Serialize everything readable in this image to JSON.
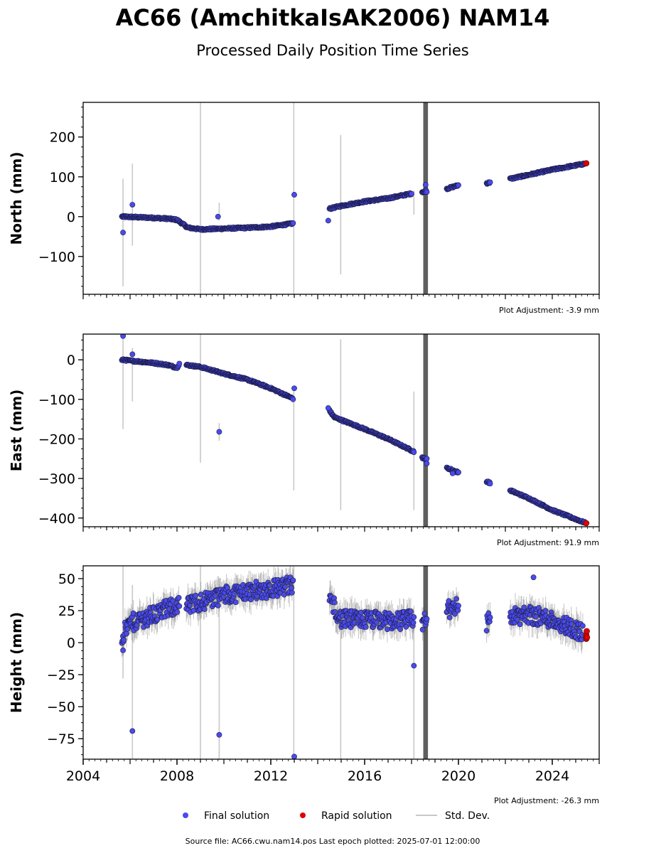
{
  "figure": {
    "title": "AC66 (AmchitkaIsAK2006) NAM14",
    "subtitle": "Processed Daily Position Time Series",
    "footer": "Source file: AC66.cwu.nam14.pos  Last epoch plotted: 2025-07-01 12:00:00"
  },
  "legend": {
    "placement": "bottom-center",
    "items": [
      {
        "label": "Final solution",
        "color": "#4a4af0",
        "kind": "dot"
      },
      {
        "label": "Rapid solution",
        "color": "#e00000",
        "kind": "dot"
      },
      {
        "label": "Std. Dev.",
        "color": "#c8c8c8",
        "kind": "line"
      }
    ]
  },
  "chart_data": [
    {
      "type": "scatter",
      "ylabel": "North (mm)",
      "xlabel": "",
      "xlim": [
        2004,
        2026
      ],
      "ylim": [
        -195,
        287
      ],
      "yticks": [
        -100,
        0,
        100,
        200
      ],
      "ytick_labels": [
        "−100",
        "0",
        "100",
        "200"
      ],
      "adjustment": "Plot Adjustment: -3.9 mm",
      "trend_segments": [
        {
          "x": [
            2005.65,
            2007.0,
            2007.6,
            2008.0,
            2008.4
          ],
          "y": [
            0,
            -3,
            -5,
            -8,
            -25
          ]
        },
        {
          "x": [
            2008.4,
            2009.0,
            2010.0,
            2011.0,
            2012.0,
            2012.95
          ],
          "y": [
            -27,
            -32,
            -30,
            -28,
            -25,
            -17
          ]
        },
        {
          "x": [
            2014.5,
            2015.0,
            2016.0,
            2017.0,
            2018.0
          ],
          "y": [
            20,
            27,
            38,
            46,
            58
          ]
        },
        {
          "x": [
            2018.45,
            2018.65
          ],
          "y": [
            62,
            64
          ]
        },
        {
          "x": [
            2019.5,
            2020.0
          ],
          "y": [
            70,
            79
          ]
        },
        {
          "x": [
            2021.2,
            2021.35
          ],
          "y": [
            84,
            86
          ]
        },
        {
          "x": [
            2022.2,
            2023.0,
            2024.0,
            2025.4
          ],
          "y": [
            95,
            105,
            118,
            133
          ]
        }
      ],
      "outliers": [
        {
          "x": 2005.7,
          "y": -40
        },
        {
          "x": 2006.1,
          "y": 30
        },
        {
          "x": 2009.75,
          "y": 0
        },
        {
          "x": 2013.0,
          "y": 55
        },
        {
          "x": 2014.45,
          "y": -10
        },
        {
          "x": 2018.6,
          "y": 80
        }
      ],
      "rapid": [
        {
          "x": 2025.45,
          "y": 134
        }
      ],
      "std_bars": [
        {
          "x": 2005.7,
          "lo": -175,
          "hi": 95
        },
        {
          "x": 2006.1,
          "lo": -73,
          "hi": 133
        },
        {
          "x": 2009.0,
          "lo": -195,
          "hi": 287
        },
        {
          "x": 2009.8,
          "lo": -10,
          "hi": 35
        },
        {
          "x": 2012.98,
          "lo": -195,
          "hi": 287
        },
        {
          "x": 2014.98,
          "lo": -145,
          "hi": 205
        },
        {
          "x": 2018.1,
          "lo": 5,
          "hi": 65
        }
      ],
      "dark_band": {
        "x": [
          2018.5,
          2018.7
        ],
        "lo": -195,
        "hi": 287
      }
    },
    {
      "type": "scatter",
      "ylabel": "East (mm)",
      "xlabel": "",
      "xlim": [
        2004,
        2026
      ],
      "ylim": [
        -422,
        65
      ],
      "yticks": [
        -400,
        -300,
        -200,
        -100,
        0
      ],
      "ytick_labels": [
        "−400",
        "−300",
        "−200",
        "−100",
        "0"
      ],
      "adjustment": "Plot Adjustment: 91.9 mm",
      "trend_segments": [
        {
          "x": [
            2005.65,
            2007.0,
            2007.6,
            2008.0,
            2008.1
          ],
          "y": [
            0,
            -8,
            -13,
            -20,
            -10
          ]
        },
        {
          "x": [
            2008.4,
            2009.0,
            2010.0,
            2011.0,
            2012.0,
            2012.95
          ],
          "y": [
            -13,
            -18,
            -35,
            -50,
            -72,
            -98
          ]
        },
        {
          "x": [
            2014.5,
            2014.7,
            2015.0,
            2016.0,
            2017.0,
            2018.1
          ],
          "y": [
            -128,
            -145,
            -152,
            -175,
            -200,
            -232
          ]
        },
        {
          "x": [
            2018.45,
            2018.65
          ],
          "y": [
            -247,
            -252
          ]
        },
        {
          "x": [
            2019.5,
            2020.0
          ],
          "y": [
            -273,
            -285
          ]
        },
        {
          "x": [
            2021.2,
            2021.35
          ],
          "y": [
            -307,
            -312
          ]
        },
        {
          "x": [
            2022.2,
            2023.0,
            2024.0,
            2025.4
          ],
          "y": [
            -330,
            -350,
            -380,
            -412
          ]
        }
      ],
      "outliers": [
        {
          "x": 2005.7,
          "y": 60
        },
        {
          "x": 2006.1,
          "y": 14
        },
        {
          "x": 2009.8,
          "y": -182
        },
        {
          "x": 2013.0,
          "y": -72
        },
        {
          "x": 2014.45,
          "y": -122
        },
        {
          "x": 2018.65,
          "y": -262
        },
        {
          "x": 2019.75,
          "y": -287
        }
      ],
      "rapid": [
        {
          "x": 2025.45,
          "y": -413
        }
      ],
      "std_bars": [
        {
          "x": 2005.7,
          "lo": -175,
          "hi": 55
        },
        {
          "x": 2006.1,
          "lo": -105,
          "hi": 30
        },
        {
          "x": 2009.0,
          "lo": -260,
          "hi": 65
        },
        {
          "x": 2009.8,
          "lo": -205,
          "hi": -160
        },
        {
          "x": 2012.98,
          "lo": -330,
          "hi": -70
        },
        {
          "x": 2014.98,
          "lo": -380,
          "hi": 52
        },
        {
          "x": 2018.1,
          "lo": -380,
          "hi": -80
        }
      ],
      "dark_band": {
        "x": [
          2018.5,
          2018.7
        ],
        "lo": -422,
        "hi": 65
      }
    },
    {
      "type": "scatter",
      "ylabel": "Height (mm)",
      "xlabel": "",
      "xlim": [
        2004,
        2026
      ],
      "ylim": [
        -91,
        60
      ],
      "yticks": [
        -75,
        -50,
        -25,
        0,
        25,
        50
      ],
      "ytick_labels": [
        "−75",
        "−50",
        "−25",
        "0",
        "25",
        "50"
      ],
      "xticks": [
        2004,
        2008,
        2012,
        2016,
        2020,
        2024
      ],
      "xtick_labels": [
        "2004",
        "2008",
        "2012",
        "2016",
        "2020",
        "2024"
      ],
      "adjustment": "Plot Adjustment: -26.3 mm",
      "trend_segments": [
        {
          "x": [
            2005.65,
            2006.0,
            2007.0,
            2008.1
          ],
          "y": [
            5,
            15,
            22,
            30
          ]
        },
        {
          "x": [
            2008.4,
            2009.0,
            2010.0,
            2011.0,
            2012.0,
            2012.95
          ],
          "y": [
            28,
            32,
            37,
            40,
            42,
            45
          ]
        },
        {
          "x": [
            2014.5,
            2015.0,
            2016.0,
            2017.0,
            2018.1
          ],
          "y": [
            35,
            18,
            18,
            17,
            18
          ]
        },
        {
          "x": [
            2018.45,
            2018.65
          ],
          "y": [
            15,
            18
          ]
        },
        {
          "x": [
            2019.5,
            2020.0
          ],
          "y": [
            25,
            30
          ]
        },
        {
          "x": [
            2021.2,
            2021.35
          ],
          "y": [
            15,
            20
          ]
        },
        {
          "x": [
            2022.2,
            2023.0,
            2024.0,
            2025.3
          ],
          "y": [
            20,
            22,
            18,
            8
          ]
        }
      ],
      "noise": 7,
      "outliers": [
        {
          "x": 2005.7,
          "y": -6
        },
        {
          "x": 2006.1,
          "y": -69
        },
        {
          "x": 2009.8,
          "y": -72
        },
        {
          "x": 2013.0,
          "y": -89
        },
        {
          "x": 2018.1,
          "y": -18
        },
        {
          "x": 2023.2,
          "y": 51
        }
      ],
      "rapid": [
        {
          "x": 2025.45,
          "y": 3
        },
        {
          "x": 2025.45,
          "y": 6
        },
        {
          "x": 2025.47,
          "y": 9
        },
        {
          "x": 2025.48,
          "y": 4
        }
      ],
      "std_bars": [
        {
          "x": 2005.7,
          "lo": -28,
          "hi": 60
        },
        {
          "x": 2006.1,
          "lo": -91,
          "hi": 45
        },
        {
          "x": 2009.0,
          "lo": -91,
          "hi": 60
        },
        {
          "x": 2009.8,
          "lo": -91,
          "hi": 50
        },
        {
          "x": 2012.98,
          "lo": -91,
          "hi": 60
        },
        {
          "x": 2014.98,
          "lo": -91,
          "hi": 20
        },
        {
          "x": 2018.1,
          "lo": -91,
          "hi": 25
        }
      ],
      "dark_band": {
        "x": [
          2018.5,
          2018.7
        ],
        "lo": -91,
        "hi": 60
      }
    }
  ]
}
